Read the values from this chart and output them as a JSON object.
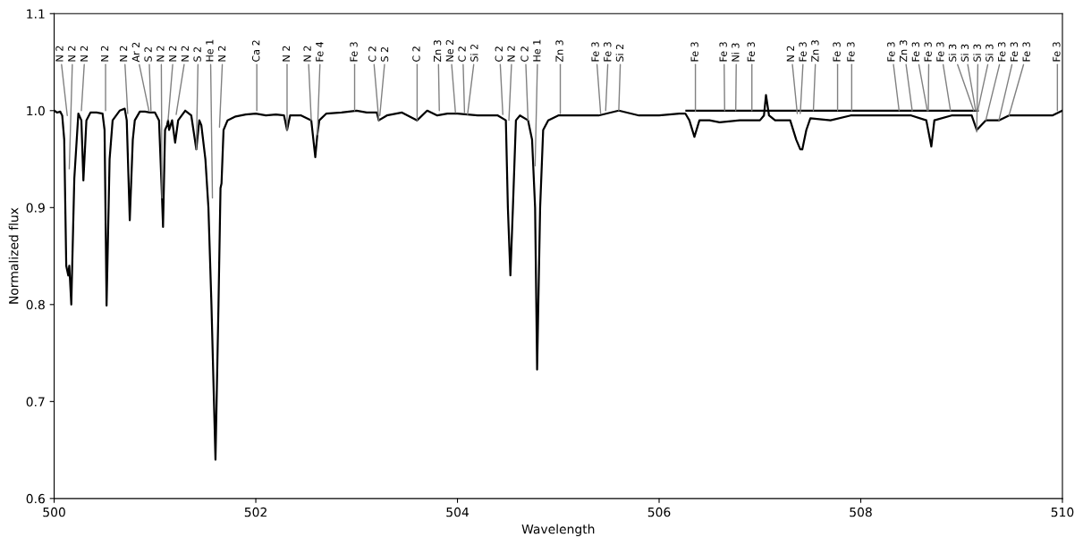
{
  "chart_data": {
    "type": "line",
    "xlabel": "Wavelength",
    "ylabel": "Normalized flux",
    "xlim": [
      500,
      510
    ],
    "ylim": [
      0.6,
      1.1
    ],
    "xticks": [
      500,
      502,
      504,
      506,
      508,
      510
    ],
    "yticks": [
      0.6,
      0.7,
      0.8,
      0.9,
      {
        "value": 1.0,
        "label": "1.0"
      },
      1.1
    ],
    "grid": false,
    "marker": "none",
    "line_style": "solid",
    "series": [
      {
        "color": "#000000",
        "x": [
          500.0,
          500.03,
          500.06,
          500.08,
          500.1,
          500.12,
          500.14,
          500.15,
          500.17,
          500.2,
          500.24,
          500.27,
          500.29,
          500.32,
          500.36,
          500.42,
          500.48,
          500.5,
          500.52,
          500.55,
          500.58,
          500.65,
          500.7,
          500.72,
          500.75,
          500.78,
          500.8,
          500.85,
          500.9,
          500.95,
          501.0,
          501.04,
          501.07,
          501.08,
          501.1,
          501.12,
          501.13,
          501.14,
          501.17,
          501.2,
          501.23,
          501.3,
          501.36,
          501.41,
          501.44,
          501.46,
          501.5,
          501.53,
          501.56,
          501.6,
          501.63,
          501.65,
          501.66,
          501.68,
          501.72,
          501.8,
          501.9,
          502.0,
          502.1,
          502.2,
          502.28,
          502.31,
          502.34,
          502.45,
          502.55,
          502.59,
          502.61,
          502.63,
          502.7,
          502.85,
          503.0,
          503.1,
          503.2,
          503.22,
          503.3,
          503.45,
          503.6,
          503.7,
          503.8,
          503.9,
          504.0,
          504.2,
          504.4,
          504.48,
          504.5,
          504.525,
          504.55,
          504.58,
          504.62,
          504.7,
          504.74,
          504.77,
          504.79,
          504.82,
          504.85,
          504.9,
          505.0,
          505.2,
          505.4,
          505.6,
          505.8,
          506.0,
          506.2,
          506.26,
          506.3,
          506.35,
          506.4,
          506.5,
          506.6,
          506.8,
          507.0,
          507.04,
          507.06,
          507.09,
          507.15,
          507.3,
          507.36,
          507.4,
          507.42,
          507.46,
          507.5,
          507.7,
          507.9,
          508.1,
          508.3,
          508.5,
          508.65,
          508.7,
          508.73,
          508.9,
          509.1,
          509.15,
          509.24,
          509.37,
          509.47,
          509.7,
          509.9,
          510.0
        ],
        "values": [
          1.0,
          0.998,
          0.999,
          0.995,
          0.97,
          0.84,
          0.83,
          0.84,
          0.8,
          0.93,
          0.997,
          0.99,
          0.928,
          0.99,
          0.998,
          0.998,
          0.997,
          0.98,
          0.799,
          0.95,
          0.99,
          1.0,
          1.002,
          0.99,
          0.887,
          0.97,
          0.99,
          0.999,
          0.999,
          0.998,
          0.998,
          0.99,
          0.91,
          0.88,
          0.98,
          0.985,
          0.99,
          0.98,
          0.99,
          0.967,
          0.99,
          1.0,
          0.995,
          0.96,
          0.99,
          0.985,
          0.95,
          0.9,
          0.8,
          0.64,
          0.8,
          0.92,
          0.925,
          0.98,
          0.99,
          0.994,
          0.996,
          0.997,
          0.995,
          0.996,
          0.995,
          0.98,
          0.995,
          0.995,
          0.99,
          0.952,
          0.975,
          0.99,
          0.997,
          0.998,
          1.0,
          0.998,
          0.998,
          0.99,
          0.995,
          0.998,
          0.99,
          1.0,
          0.995,
          0.997,
          0.997,
          0.995,
          0.995,
          0.99,
          0.9,
          0.83,
          0.9,
          0.99,
          0.995,
          0.99,
          0.97,
          0.9,
          0.733,
          0.9,
          0.98,
          0.99,
          0.995,
          0.995,
          0.995,
          1.0,
          0.995,
          0.995,
          0.997,
          0.997,
          0.99,
          0.973,
          0.99,
          0.99,
          0.988,
          0.99,
          0.99,
          0.995,
          1.016,
          0.995,
          0.99,
          0.99,
          0.97,
          0.96,
          0.96,
          0.98,
          0.992,
          0.99,
          0.995,
          0.995,
          0.995,
          0.995,
          0.99,
          0.963,
          0.99,
          0.995,
          0.995,
          0.98,
          0.99,
          0.99,
          0.995,
          0.995,
          0.995,
          1.0
        ]
      },
      {
        "color": "#000000",
        "x": [
          506.27,
          509.16
        ],
        "values": [
          1.0,
          1.0
        ]
      }
    ],
    "annotations": [
      {
        "text": "N 2",
        "x": 500.13,
        "y": 0.995
      },
      {
        "text": "N 2",
        "x": 500.15,
        "y": 0.94
      },
      {
        "text": "N 2",
        "x": 500.27,
        "y": 1.0
      },
      {
        "text": "N 2",
        "x": 500.51,
        "y": 1.0
      },
      {
        "text": "N 2",
        "x": 500.73,
        "y": 0.997
      },
      {
        "text": "Ar 2",
        "x": 500.94,
        "y": 1.0
      },
      {
        "text": "S 2",
        "x": 500.96,
        "y": 1.0
      },
      {
        "text": "N 2",
        "x": 501.07,
        "y": 0.91
      },
      {
        "text": "N 2",
        "x": 501.13,
        "y": 0.99
      },
      {
        "text": "N 2",
        "x": 501.21,
        "y": 0.996
      },
      {
        "text": "S 2",
        "x": 501.41,
        "y": 0.96
      },
      {
        "text": "He 1",
        "x": 501.57,
        "y": 0.91
      },
      {
        "text": "N 2",
        "x": 501.64,
        "y": 0.983
      },
      {
        "text": "Ca 2",
        "x": 502.01,
        "y": 1.0
      },
      {
        "text": "N 2",
        "x": 502.31,
        "y": 0.98
      },
      {
        "text": "N 2",
        "x": 502.55,
        "y": 0.99
      },
      {
        "text": "Fe 4",
        "x": 502.61,
        "y": 0.975
      },
      {
        "text": "Fe 3",
        "x": 502.98,
        "y": 1.0
      },
      {
        "text": "C 2",
        "x": 503.22,
        "y": 0.99
      },
      {
        "text": "S 2",
        "x": 503.23,
        "y": 0.995
      },
      {
        "text": "C 2",
        "x": 503.6,
        "y": 0.99
      },
      {
        "text": "Zn 3",
        "x": 503.82,
        "y": 1.0
      },
      {
        "text": "Ne 2",
        "x": 503.98,
        "y": 0.998
      },
      {
        "text": "C 2",
        "x": 504.07,
        "y": 0.998
      },
      {
        "text": "Si 2",
        "x": 504.1,
        "y": 0.996
      },
      {
        "text": "C 2",
        "x": 504.45,
        "y": 0.996
      },
      {
        "text": "N 2",
        "x": 504.51,
        "y": 0.99
      },
      {
        "text": "C 2",
        "x": 504.7,
        "y": 0.99
      },
      {
        "text": "He 1",
        "x": 504.77,
        "y": 0.943
      },
      {
        "text": "Zn 3",
        "x": 505.02,
        "y": 0.997
      },
      {
        "text": "Fe 3",
        "x": 505.42,
        "y": 0.997
      },
      {
        "text": "Fe 3",
        "x": 505.47,
        "y": 1.0
      },
      {
        "text": "Si 2",
        "x": 505.6,
        "y": 1.0
      },
      {
        "text": "Fe 3",
        "x": 506.36,
        "y": 0.999
      },
      {
        "text": "Fe 3",
        "x": 506.65,
        "y": 1.0
      },
      {
        "text": "Ni 3",
        "x": 506.76,
        "y": 1.0
      },
      {
        "text": "Fe 3",
        "x": 506.92,
        "y": 1.0
      },
      {
        "text": "N 2",
        "x": 507.37,
        "y": 0.997
      },
      {
        "text": "Fe 3",
        "x": 507.4,
        "y": 0.997
      },
      {
        "text": "Zn 3",
        "x": 507.53,
        "y": 1.0
      },
      {
        "text": "Fe 3",
        "x": 507.77,
        "y": 1.0
      },
      {
        "text": "Fe 3",
        "x": 507.91,
        "y": 1.0
      },
      {
        "text": "Fe 3",
        "x": 508.38,
        "y": 1.0
      },
      {
        "text": "Zn 3",
        "x": 508.51,
        "y": 1.0
      },
      {
        "text": "Fe 3",
        "x": 508.66,
        "y": 1.0
      },
      {
        "text": "Fe 3",
        "x": 508.67,
        "y": 1.0
      },
      {
        "text": "Fe 3",
        "x": 508.89,
        "y": 1.0
      },
      {
        "text": "Si 3",
        "x": 509.12,
        "y": 1.0
      },
      {
        "text": "Si 3",
        "x": 509.14,
        "y": 1.0
      },
      {
        "text": "Si 3",
        "x": 509.15,
        "y": 0.978
      },
      {
        "text": "Si 3",
        "x": 509.16,
        "y": 1.0
      },
      {
        "text": "Fe 3",
        "x": 509.24,
        "y": 0.99
      },
      {
        "text": "Fe 3",
        "x": 509.37,
        "y": 0.99
      },
      {
        "text": "Fe 3",
        "x": 509.47,
        "y": 0.995
      },
      {
        "text": "Fe 3",
        "x": 509.95,
        "y": 1.0
      }
    ]
  }
}
